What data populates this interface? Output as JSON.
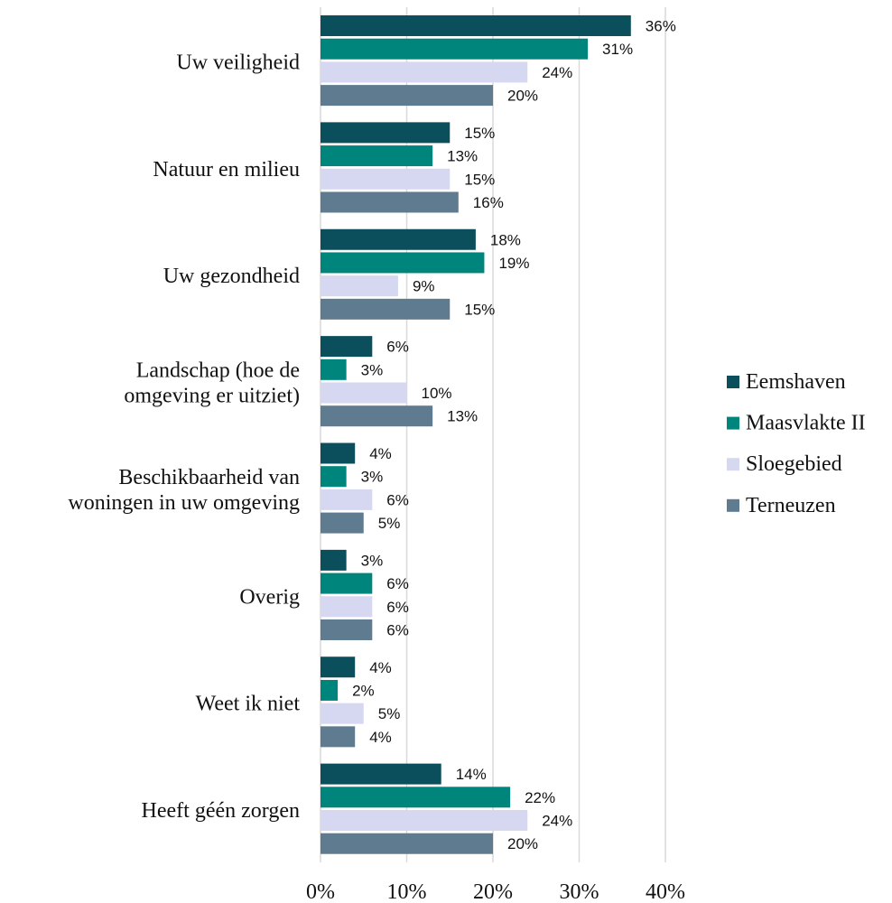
{
  "chart_data": {
    "type": "hbar",
    "categories": [
      [
        "Uw veiligheid"
      ],
      [
        "Natuur en milieu"
      ],
      [
        "Uw gezondheid"
      ],
      [
        "Landschap (hoe de",
        "omgeving er uitziet)"
      ],
      [
        "Beschikbaarheid van",
        "woningen in uw omgeving"
      ],
      [
        "Overig"
      ],
      [
        "Weet ik niet"
      ],
      [
        "Heeft géén zorgen"
      ]
    ],
    "series": [
      {
        "name": "Eemshaven",
        "color": "#0b4f5c",
        "values": [
          36,
          15,
          18,
          6,
          4,
          3,
          4,
          14
        ],
        "value_labels": [
          "36%",
          "15%",
          "18%",
          "6%",
          "4%",
          "3%",
          "4%",
          "14%"
        ]
      },
      {
        "name": "Maasvlakte II",
        "color": "#00857c",
        "values": [
          31,
          13,
          19,
          3,
          3,
          6,
          2,
          22
        ],
        "value_labels": [
          "31%",
          "13%",
          "19%",
          "3%",
          "3%",
          "6%",
          "2%",
          "22%"
        ]
      },
      {
        "name": "Sloegebied",
        "color": "#d5d8f0",
        "values": [
          24,
          15,
          9,
          10,
          6,
          6,
          5,
          24
        ],
        "value_labels": [
          "24%",
          "15%",
          "9%",
          "10%",
          "6%",
          "6%",
          "5%",
          "24%"
        ]
      },
      {
        "name": "Terneuzen",
        "color": "#5f7b8f",
        "values": [
          20,
          16,
          15,
          13,
          5,
          6,
          4,
          20
        ],
        "value_labels": [
          "20%",
          "16%",
          "15%",
          "13%",
          "5%",
          "6%",
          "4%",
          "20%"
        ]
      }
    ],
    "xlim": [
      0,
      40
    ],
    "xticks": [
      {
        "value": 0,
        "label": "0%"
      },
      {
        "value": 10,
        "label": "10%"
      },
      {
        "value": 20,
        "label": "20%"
      },
      {
        "value": 30,
        "label": "30%"
      },
      {
        "value": 40,
        "label": "40%"
      }
    ],
    "grid": true,
    "legend": "right"
  }
}
